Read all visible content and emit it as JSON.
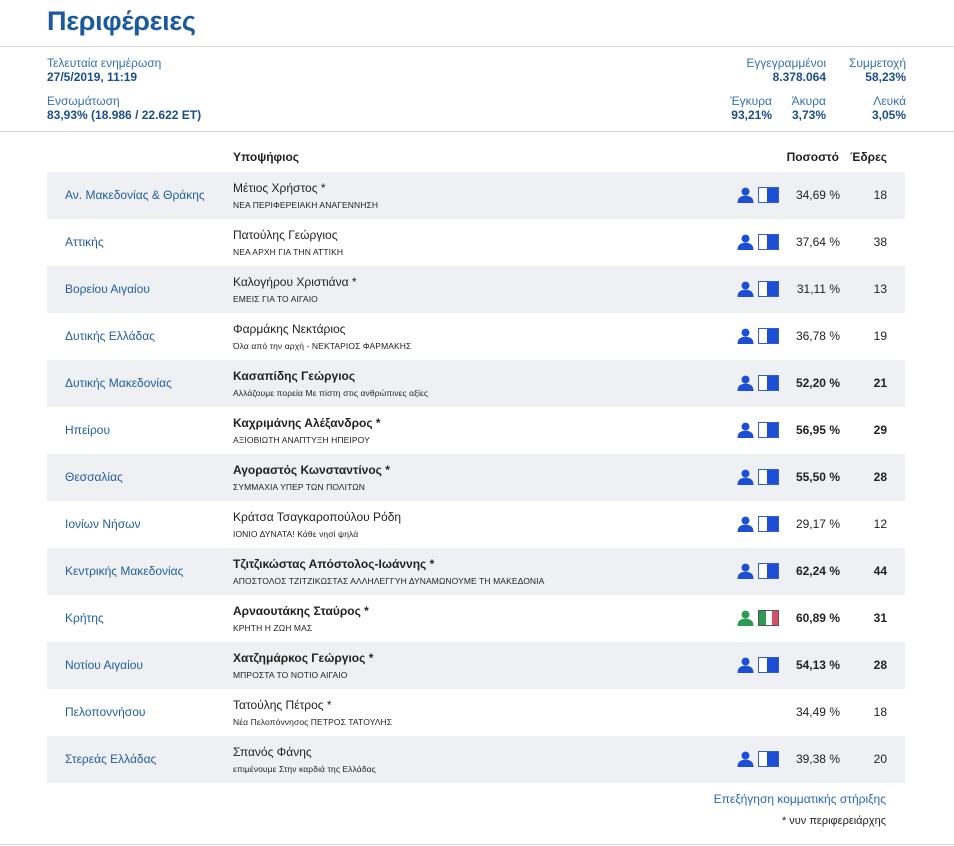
{
  "page": {
    "title": "Περιφέρειες"
  },
  "header": {
    "last_update_label": "Τελευταία ενημέρωση",
    "last_update_value": "27/5/2019, 11:19",
    "integration_label": "Ενσωμάτωση",
    "integration_value": "83,93% (18.986 / 22.622 ΕΤ)",
    "registered_label": "Εγγεγραμμένοι",
    "registered_value": "8.378.064",
    "turnout_label": "Συμμετοχή",
    "turnout_value": "58,23%",
    "valid_label": "Έγκυρα",
    "valid_value": "93,21%",
    "invalid_label": "Άκυρα",
    "invalid_value": "3,73%",
    "blank_label": "Λευκά",
    "blank_value": "3,05%"
  },
  "table": {
    "col_candidate": "Υποψήφιος",
    "col_percent": "Ποσοστό",
    "col_seats": "Έδρες",
    "rows": [
      {
        "region": "Αν. Μακεδονίας & Θράκης",
        "candidate": "Μέτιος Χρήστος *",
        "party": "ΝΕΑ ΠΕΡΙΦΕΡΕΙΑΚΗ ΑΝΑΓΕΝΝΗΣΗ",
        "percent": "34,69 %",
        "seats": "18",
        "bold": false,
        "support": "half"
      },
      {
        "region": "Αττικής",
        "candidate": "Πατούλης Γεώργιος",
        "party": "ΝΕΑ ΑΡΧΗ ΓΙΑ ΤΗΝ ΑΤΤΙΚΗ",
        "percent": "37,64 %",
        "seats": "38",
        "bold": false,
        "support": "half"
      },
      {
        "region": "Βορείου Αιγαίου",
        "candidate": "Καλογήρου Χριστιάνα *",
        "party": "ΕΜΕΙΣ ΓΙΑ ΤΟ ΑΙΓΑΙΟ",
        "percent": "31,11 %",
        "seats": "13",
        "bold": false,
        "support": "half"
      },
      {
        "region": "Δυτικής Ελλάδας",
        "candidate": "Φαρμάκης Νεκτάριος",
        "party": "Όλα από την αρχή - ΝΕΚΤΑΡΙΟΣ ΦΑΡΜΑΚΗΣ",
        "percent": "36,78 %",
        "seats": "19",
        "bold": false,
        "support": "half"
      },
      {
        "region": "Δυτικής Μακεδονίας",
        "candidate": "Κασαπίδης Γεώργιος",
        "party": "Αλλάζουμε πορεία Με πίστη στις ανθρώπινες αξίες",
        "percent": "52,20 %",
        "seats": "21",
        "bold": true,
        "support": "half"
      },
      {
        "region": "Ηπείρου",
        "candidate": "Καχριμάνης Αλέξανδρος *",
        "party": "ΑΞΙΟΒΙΩΤΗ ΑΝΑΠΤΥΞΗ ΗΠΕΙΡΟΥ",
        "percent": "56,95 %",
        "seats": "29",
        "bold": true,
        "support": "half"
      },
      {
        "region": "Θεσσαλίας",
        "candidate": "Αγοραστός Κωνσταντίνος *",
        "party": "ΣΥΜΜΑΧΙΑ ΥΠΕΡ ΤΩΝ ΠΟΛΙΤΩΝ",
        "percent": "55,50 %",
        "seats": "28",
        "bold": true,
        "support": "half"
      },
      {
        "region": "Ιονίων Νήσων",
        "candidate": "Κράτσα Τσαγκαροπούλου Ρόδη",
        "party": "ΙΟΝΙΟ ΔΥΝΑΤΑ! Κάθε νησί ψηλά",
        "percent": "29,17 %",
        "seats": "12",
        "bold": false,
        "support": "half"
      },
      {
        "region": "Κεντρικής Μακεδονίας",
        "candidate": "Τζιτζικώστας Απόστολος-Ιωάννης *",
        "party": "ΑΠΟΣΤΟΛΟΣ ΤΖΙΤΖΙΚΩΣΤΑΣ ΑΛΛΗΛΕΓΓΥΗ ΔΥΝΑΜΩΝΟΥΜΕ ΤΗ ΜΑΚΕΔΟΝΙΑ",
        "percent": "62,24 %",
        "seats": "44",
        "bold": true,
        "support": "half"
      },
      {
        "region": "Κρήτης",
        "candidate": "Αρναουτάκης Σταύρος *",
        "party": "ΚΡΗΤΗ Η ΖΩΗ ΜΑΣ",
        "percent": "60,89 %",
        "seats": "31",
        "bold": true,
        "support": "tricolor"
      },
      {
        "region": "Νοτίου Αιγαίου",
        "candidate": "Χατζημάρκος Γεώργιος *",
        "party": "ΜΠΡΟΣΤΑ ΤΟ ΝΟΤΙΟ ΑΙΓΑΙΟ",
        "percent": "54,13 %",
        "seats": "28",
        "bold": true,
        "support": "half"
      },
      {
        "region": "Πελοποννήσου",
        "candidate": "Τατούλης Πέτρος *",
        "party": "Νέα Πελοπόννησος ΠΕΤΡΟΣ ΤΑΤΟΥΛΗΣ",
        "percent": "34,49 %",
        "seats": "18",
        "bold": false,
        "support": "none"
      },
      {
        "region": "Στερεάς Ελλάδας",
        "candidate": "Σπανός Φάνης",
        "party": "επιμένουμε Στην καρδιά της Ελλάδας",
        "percent": "39,38 %",
        "seats": "20",
        "bold": false,
        "support": "half"
      }
    ]
  },
  "footer": {
    "link": "Επεξήγηση κομματικής στήριξης",
    "note": "* νυν περιφερειάρχης"
  },
  "colors": {
    "title": "#1b5a9c",
    "link": "#1f5e9e",
    "support_blue": "#1d4fd4",
    "support_green": "#2c9a52",
    "support_red": "#d84d6a",
    "row_shade": "#eff0f3"
  }
}
